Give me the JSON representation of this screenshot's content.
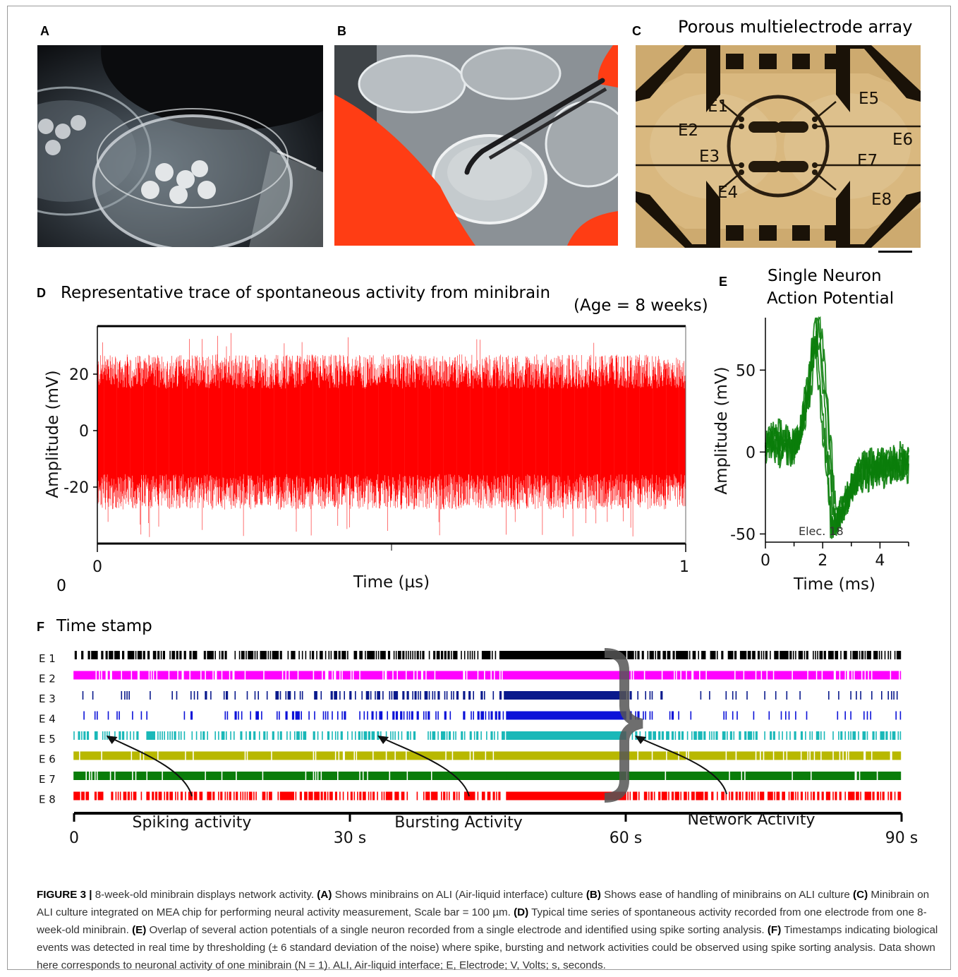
{
  "panels": {
    "a": {
      "letter": "A"
    },
    "b": {
      "letter": "B"
    },
    "c": {
      "letter": "C",
      "title": "Porous multielectrode array",
      "electrodes": [
        "E1",
        "E2",
        "E3",
        "E4",
        "E5",
        "E6",
        "E7",
        "E8"
      ]
    },
    "d": {
      "letter": "D",
      "title": "Representative trace of spontaneous activity from minibrain",
      "age": "(Age = 8 weeks)",
      "origin_label": "0"
    },
    "e": {
      "letter": "E",
      "title_line1": "Single Neuron",
      "title_line2": "Action Potential",
      "inset_label": "Elec. 18"
    },
    "f": {
      "letter": "F",
      "title": "Time stamp",
      "rows": [
        "E 1",
        "E 2",
        "E 3",
        "E 4",
        "E 5",
        "E 6",
        "E 7",
        "E 8"
      ],
      "annotations": [
        "Spiking activity",
        "Bursting Activity",
        "Network Activity"
      ]
    }
  },
  "chart_data": [
    {
      "type": "line",
      "panel": "D",
      "title": "Representative trace of spontaneous activity from minibrain",
      "xlabel": "Time (µs)",
      "ylabel": "Amplitude (mV)",
      "x_ticks": [
        "0",
        "1"
      ],
      "y_ticks": [
        "20",
        "0",
        "-20"
      ],
      "ylim": [
        -40,
        37
      ],
      "xlim": [
        0,
        1
      ],
      "series": [
        {
          "color": "#ff0000",
          "noise_range": [
            -28,
            27
          ],
          "peak_max": 35,
          "peak_min": -38
        }
      ]
    },
    {
      "type": "line",
      "panel": "E",
      "xlabel": "Time (ms)",
      "ylabel": "Amplitude (mV)",
      "x_ticks": [
        "0",
        "2",
        "4"
      ],
      "y_ticks": [
        "50",
        "0",
        "-50"
      ],
      "xlim": [
        0,
        5
      ],
      "ylim": [
        -55,
        82
      ],
      "series": [
        {
          "color": "#0a7d0a",
          "peak": {
            "x": 1.8,
            "y": 80
          },
          "trough": {
            "x": 2.4,
            "y": -45
          }
        }
      ]
    },
    {
      "type": "scatter",
      "panel": "F",
      "xlabel": "",
      "x_ticks": [
        "0",
        "30 s",
        "60 s",
        "90 s"
      ],
      "xlim": [
        0,
        90
      ],
      "network_burst": [
        47,
        60
      ],
      "series": [
        {
          "name": "E 1",
          "color": "#000000",
          "density": 0.55
        },
        {
          "name": "E 2",
          "color": "#ff00ff",
          "density": 0.85
        },
        {
          "name": "E 3",
          "color": "#0a1a8c",
          "density": 0.12
        },
        {
          "name": "E 4",
          "color": "#0c12d8",
          "density": 0.1
        },
        {
          "name": "E 5",
          "color": "#1ab8b8",
          "density": 0.4
        },
        {
          "name": "E 6",
          "color": "#b8b800",
          "density": 0.92
        },
        {
          "name": "E 7",
          "color": "#0a7d0a",
          "density": 0.95
        },
        {
          "name": "E 8",
          "color": "#ff0000",
          "density": 0.55
        }
      ]
    }
  ],
  "caption": {
    "label": "FIGURE 3 |",
    "intro": " 8-week-old minibrain displays network activity. ",
    "a_key": "(A)",
    "a_text": " Shows minibrains on ALI (Air-liquid interface) culture ",
    "b_key": "(B)",
    "b_text": " Shows ease of handling of minibrains on ALI culture ",
    "c_key": "(C)",
    "c_text": " Minibrain on ALI culture integrated on MEA chip for performing neural activity measurement, Scale bar = 100 µm. ",
    "d_key": "(D)",
    "d_text": " Typical time series of spontaneous activity recorded from one electrode from one 8-week-old minibrain. ",
    "e_key": "(E)",
    "e_text": " Overlap of several action potentials of a single neuron recorded from a single electrode and identified using spike sorting analysis. ",
    "f_key": "(F)",
    "f_text": " Timestamps indicating biological events was detected in real time by thresholding (± 6 standard deviation of the noise) where spike, bursting and network activities could be observed using spike sorting analysis. Data shown here corresponds to neuronal activity of one minibrain (N = 1). ALI, Air-liquid interface; E, Electrode; V, Volts; s, seconds."
  }
}
